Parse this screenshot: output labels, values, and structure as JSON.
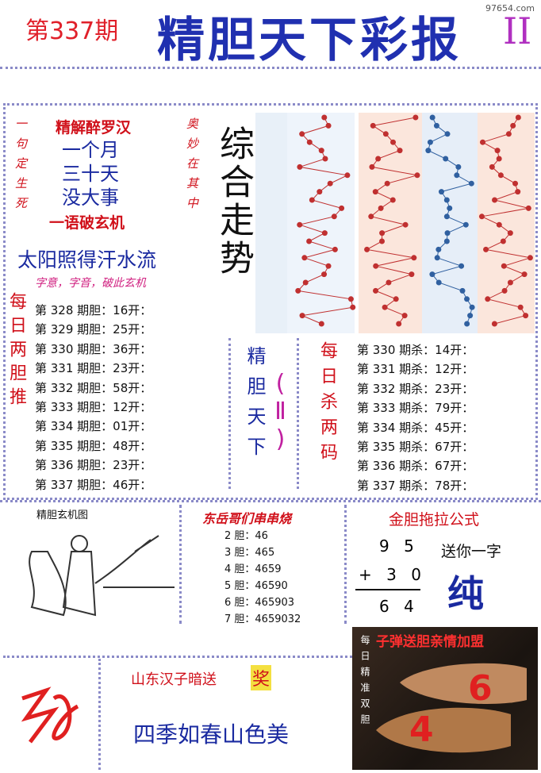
{
  "header": {
    "issue": "第337期",
    "title": "精胆天下彩报",
    "edition": "II",
    "site": "97654.com"
  },
  "riddle": {
    "title": "精解醉罗汉",
    "lines": [
      "一个月",
      "三十天",
      "没大事"
    ],
    "footer": "一语破玄机",
    "left": "一句定生死",
    "right": "奥妙在其中",
    "hint": "太阳照得汗水流",
    "tip": "字意，字音，破此玄机"
  },
  "trend": {
    "title": "综合走势"
  },
  "daily_pair": {
    "label": "每日两胆推",
    "rows": [
      "第 328 期胆：16开：",
      "第 329 期胆：25开：",
      "第 330 期胆：36开：",
      "第 331 期胆：23开：",
      "第 332 期胆：58开：",
      "第 333 期胆：12开：",
      "第 334 期胆：01开：",
      "第 335 期胆：48开：",
      "第 336 期胆：23开：",
      "第 337 期胆：46开："
    ]
  },
  "center": {
    "name": "精胆天下",
    "mark": "(Ⅱ)"
  },
  "daily_kill": {
    "label": "每日杀两码",
    "rows": [
      "第 330 期杀：14开：",
      "第 331 期杀：12开：",
      "第 332 期杀：23开：",
      "第 333 期杀：79开：",
      "第 334 期杀：45开：",
      "第 335 期杀：67开：",
      "第 336 期杀：67开：",
      "第 337 期杀：78开："
    ]
  },
  "picture": {
    "title": "精胆玄机图"
  },
  "chain": {
    "title": "东岳哥们串串烧",
    "rows": [
      "2 胆：46",
      "3 胆：465",
      "4 胆：4659",
      "5 胆：46590",
      "6 胆：465903",
      "7 胆：4659032"
    ]
  },
  "formula": {
    "title": "金胆拖拉公式",
    "line1": "9 5",
    "line2": "+ 3 0",
    "result": "6 4",
    "gift": "送你一字",
    "word": "纯"
  },
  "bottom": {
    "sender": "山东汉子暗送",
    "prize": "奖",
    "poem": "四季如春山色美"
  },
  "promo": {
    "title": "子弹送胆亲情加盟",
    "side": "每日精准双胆",
    "big1": "6",
    "big2": "4"
  }
}
